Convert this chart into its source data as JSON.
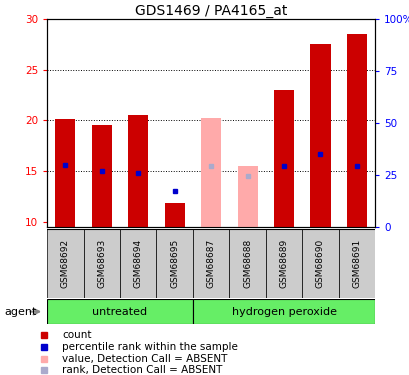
{
  "title": "GDS1469 / PA4165_at",
  "samples": [
    "GSM68692",
    "GSM68693",
    "GSM68694",
    "GSM68695",
    "GSM68687",
    "GSM68688",
    "GSM68689",
    "GSM68690",
    "GSM68691"
  ],
  "groups": [
    "untreated",
    "untreated",
    "untreated",
    "untreated",
    "hydrogen peroxide",
    "hydrogen peroxide",
    "hydrogen peroxide",
    "hydrogen peroxide",
    "hydrogen peroxide"
  ],
  "count_values": [
    20.1,
    19.5,
    20.5,
    11.9,
    null,
    null,
    23.0,
    27.5,
    28.5
  ],
  "rank_values": [
    15.6,
    15.0,
    14.8,
    13.0,
    null,
    null,
    15.5,
    16.7,
    15.5
  ],
  "count_absent": [
    null,
    null,
    null,
    null,
    20.2,
    15.5,
    null,
    null,
    null
  ],
  "rank_absent": [
    null,
    null,
    null,
    null,
    15.5,
    14.5,
    null,
    null,
    null
  ],
  "ylim_left": [
    9.5,
    30
  ],
  "ylim_right": [
    0,
    100
  ],
  "yticks_left": [
    10,
    15,
    20,
    25,
    30
  ],
  "yticks_right": [
    0,
    25,
    50,
    75,
    100
  ],
  "ytick_labels_left": [
    "10",
    "15",
    "20",
    "25",
    "30"
  ],
  "ytick_labels_right": [
    "0",
    "25",
    "50",
    "75",
    "100%"
  ],
  "bar_width": 0.55,
  "bar_color_present": "#cc0000",
  "bar_color_absent": "#ffaaaa",
  "rank_color_present": "#0000cc",
  "rank_color_absent": "#aaaacc",
  "agent_label": "agent",
  "legend_items": [
    {
      "label": "count",
      "color": "#cc0000"
    },
    {
      "label": "percentile rank within the sample",
      "color": "#0000cc"
    },
    {
      "label": "value, Detection Call = ABSENT",
      "color": "#ffaaaa"
    },
    {
      "label": "rank, Detection Call = ABSENT",
      "color": "#aaaacc"
    }
  ],
  "group_bg_color": "#66ee66",
  "sample_bg_color": "#cccccc",
  "title_fontsize": 10,
  "untreated_indices": [
    0,
    1,
    2,
    3
  ],
  "hp_indices": [
    4,
    5,
    6,
    7,
    8
  ]
}
